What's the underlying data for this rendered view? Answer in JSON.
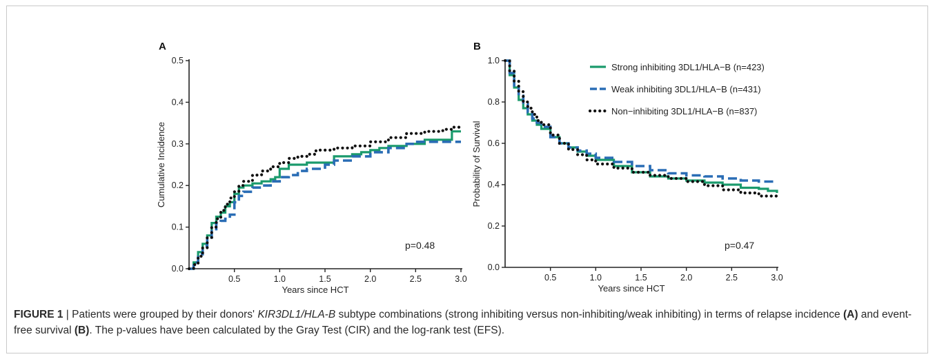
{
  "colors": {
    "strong": "#1a9a6c",
    "weak": "#2a6db5",
    "non": "#111111"
  },
  "legend": [
    {
      "label": "Strong inhibiting 3DL1/HLA−B (n=423)",
      "style": "solid",
      "color": "#1a9a6c"
    },
    {
      "label": "Weak inhibiting 3DL1/HLA−B (n=431)",
      "style": "dashed",
      "color": "#2a6db5"
    },
    {
      "label": "Non−inhibiting 3DL1/HLA−B (n=837)",
      "style": "dotted",
      "color": "#111111"
    }
  ],
  "chart_data": [
    {
      "panel": "A",
      "type": "line",
      "xlabel": "Years since HCT",
      "ylabel": "Cumulative Incidence",
      "xlim": [
        0,
        3.0
      ],
      "ylim": [
        0,
        0.5
      ],
      "xticks": [
        "0.5",
        "1.0",
        "1.5",
        "2.0",
        "2.5",
        "3.0"
      ],
      "yticks": [
        "0.0",
        "0.1",
        "0.2",
        "0.3",
        "0.4",
        "0.5"
      ],
      "annotation": "p=0.48",
      "series": [
        {
          "key": "strong",
          "style": "solid",
          "x": [
            0.0,
            0.05,
            0.1,
            0.15,
            0.2,
            0.25,
            0.3,
            0.35,
            0.4,
            0.45,
            0.5,
            0.55,
            0.6,
            0.7,
            0.8,
            0.9,
            0.95,
            1.0,
            1.1,
            1.3,
            1.5,
            1.6,
            1.8,
            1.9,
            2.0,
            2.1,
            2.2,
            2.4,
            2.6,
            2.8,
            2.9,
            3.0
          ],
          "y": [
            0.0,
            0.015,
            0.04,
            0.06,
            0.08,
            0.11,
            0.125,
            0.135,
            0.15,
            0.16,
            0.18,
            0.195,
            0.2,
            0.205,
            0.21,
            0.215,
            0.22,
            0.24,
            0.25,
            0.255,
            0.255,
            0.27,
            0.275,
            0.28,
            0.285,
            0.29,
            0.295,
            0.3,
            0.31,
            0.31,
            0.33,
            0.33
          ]
        },
        {
          "key": "weak",
          "style": "dashed",
          "x": [
            0.0,
            0.05,
            0.1,
            0.15,
            0.2,
            0.25,
            0.3,
            0.35,
            0.4,
            0.45,
            0.5,
            0.55,
            0.6,
            0.7,
            0.8,
            0.9,
            1.0,
            1.1,
            1.2,
            1.3,
            1.5,
            1.6,
            1.8,
            2.0,
            2.2,
            2.4,
            2.5,
            2.7,
            2.8,
            3.0
          ],
          "y": [
            0.0,
            0.015,
            0.035,
            0.055,
            0.075,
            0.095,
            0.11,
            0.115,
            0.12,
            0.13,
            0.16,
            0.175,
            0.185,
            0.195,
            0.2,
            0.21,
            0.22,
            0.225,
            0.235,
            0.24,
            0.25,
            0.26,
            0.27,
            0.28,
            0.29,
            0.3,
            0.305,
            0.305,
            0.305,
            0.305
          ]
        },
        {
          "key": "non",
          "style": "dotted",
          "x": [
            0.0,
            0.05,
            0.1,
            0.15,
            0.2,
            0.25,
            0.3,
            0.35,
            0.4,
            0.45,
            0.5,
            0.55,
            0.6,
            0.7,
            0.8,
            0.9,
            1.0,
            1.1,
            1.2,
            1.3,
            1.4,
            1.6,
            1.8,
            2.0,
            2.2,
            2.4,
            2.6,
            2.8,
            2.9,
            3.0
          ],
          "y": [
            0.0,
            0.01,
            0.03,
            0.05,
            0.075,
            0.1,
            0.12,
            0.14,
            0.155,
            0.17,
            0.185,
            0.2,
            0.21,
            0.225,
            0.235,
            0.245,
            0.255,
            0.265,
            0.27,
            0.275,
            0.285,
            0.29,
            0.295,
            0.305,
            0.315,
            0.325,
            0.33,
            0.335,
            0.34,
            0.345
          ]
        }
      ]
    },
    {
      "panel": "B",
      "type": "line",
      "xlabel": "Years since HCT",
      "ylabel": "Probability of Survival",
      "xlim": [
        0,
        3.0
      ],
      "ylim": [
        0,
        1.0
      ],
      "xticks": [
        "0.5",
        "1.0",
        "1.5",
        "2.0",
        "2.5",
        "3.0"
      ],
      "yticks": [
        "0.0",
        "0.2",
        "0.4",
        "0.6",
        "0.8",
        "1.0"
      ],
      "annotation": "p=0.47",
      "series": [
        {
          "key": "strong",
          "style": "solid",
          "x": [
            0.0,
            0.05,
            0.1,
            0.15,
            0.2,
            0.25,
            0.3,
            0.35,
            0.4,
            0.5,
            0.6,
            0.7,
            0.8,
            0.9,
            1.0,
            1.2,
            1.4,
            1.6,
            1.8,
            2.0,
            2.2,
            2.4,
            2.6,
            2.8,
            2.9,
            3.0
          ],
          "y": [
            1.0,
            0.93,
            0.87,
            0.81,
            0.77,
            0.74,
            0.71,
            0.69,
            0.67,
            0.63,
            0.6,
            0.58,
            0.56,
            0.54,
            0.52,
            0.49,
            0.46,
            0.44,
            0.43,
            0.42,
            0.41,
            0.4,
            0.385,
            0.38,
            0.37,
            0.36
          ]
        },
        {
          "key": "weak",
          "style": "dashed",
          "x": [
            0.0,
            0.05,
            0.1,
            0.15,
            0.2,
            0.25,
            0.3,
            0.35,
            0.4,
            0.5,
            0.6,
            0.7,
            0.8,
            0.9,
            1.0,
            1.2,
            1.4,
            1.6,
            1.8,
            2.0,
            2.2,
            2.4,
            2.6,
            2.8,
            3.0
          ],
          "y": [
            1.0,
            0.94,
            0.88,
            0.83,
            0.79,
            0.75,
            0.72,
            0.7,
            0.68,
            0.63,
            0.6,
            0.58,
            0.565,
            0.55,
            0.53,
            0.51,
            0.49,
            0.47,
            0.455,
            0.445,
            0.44,
            0.43,
            0.42,
            0.415,
            0.415
          ]
        },
        {
          "key": "non",
          "style": "dotted",
          "x": [
            0.0,
            0.05,
            0.1,
            0.15,
            0.2,
            0.25,
            0.3,
            0.35,
            0.4,
            0.5,
            0.6,
            0.7,
            0.8,
            0.9,
            1.0,
            1.2,
            1.4,
            1.6,
            1.8,
            2.0,
            2.2,
            2.4,
            2.6,
            2.8,
            3.0
          ],
          "y": [
            1.0,
            0.95,
            0.9,
            0.85,
            0.8,
            0.77,
            0.74,
            0.71,
            0.69,
            0.64,
            0.6,
            0.57,
            0.545,
            0.52,
            0.5,
            0.48,
            0.46,
            0.445,
            0.43,
            0.415,
            0.395,
            0.375,
            0.36,
            0.345,
            0.33
          ]
        }
      ]
    }
  ],
  "caption": {
    "figure_label": "FIGURE 1",
    "separator": " | Patients were grouped by their donors' ",
    "gene_italic": "KIR3DL1/HLA-B",
    "text1": " subtype combinations (strong inhibiting versus non-inhibiting/weak inhibiting) in terms of relapse incidence ",
    "refA": "(A)",
    "text2": " and event-free survival ",
    "refB": "(B)",
    "text3": ". The p-values have been calculated by the Gray Test (CIR) and the log-rank test (EFS)."
  }
}
